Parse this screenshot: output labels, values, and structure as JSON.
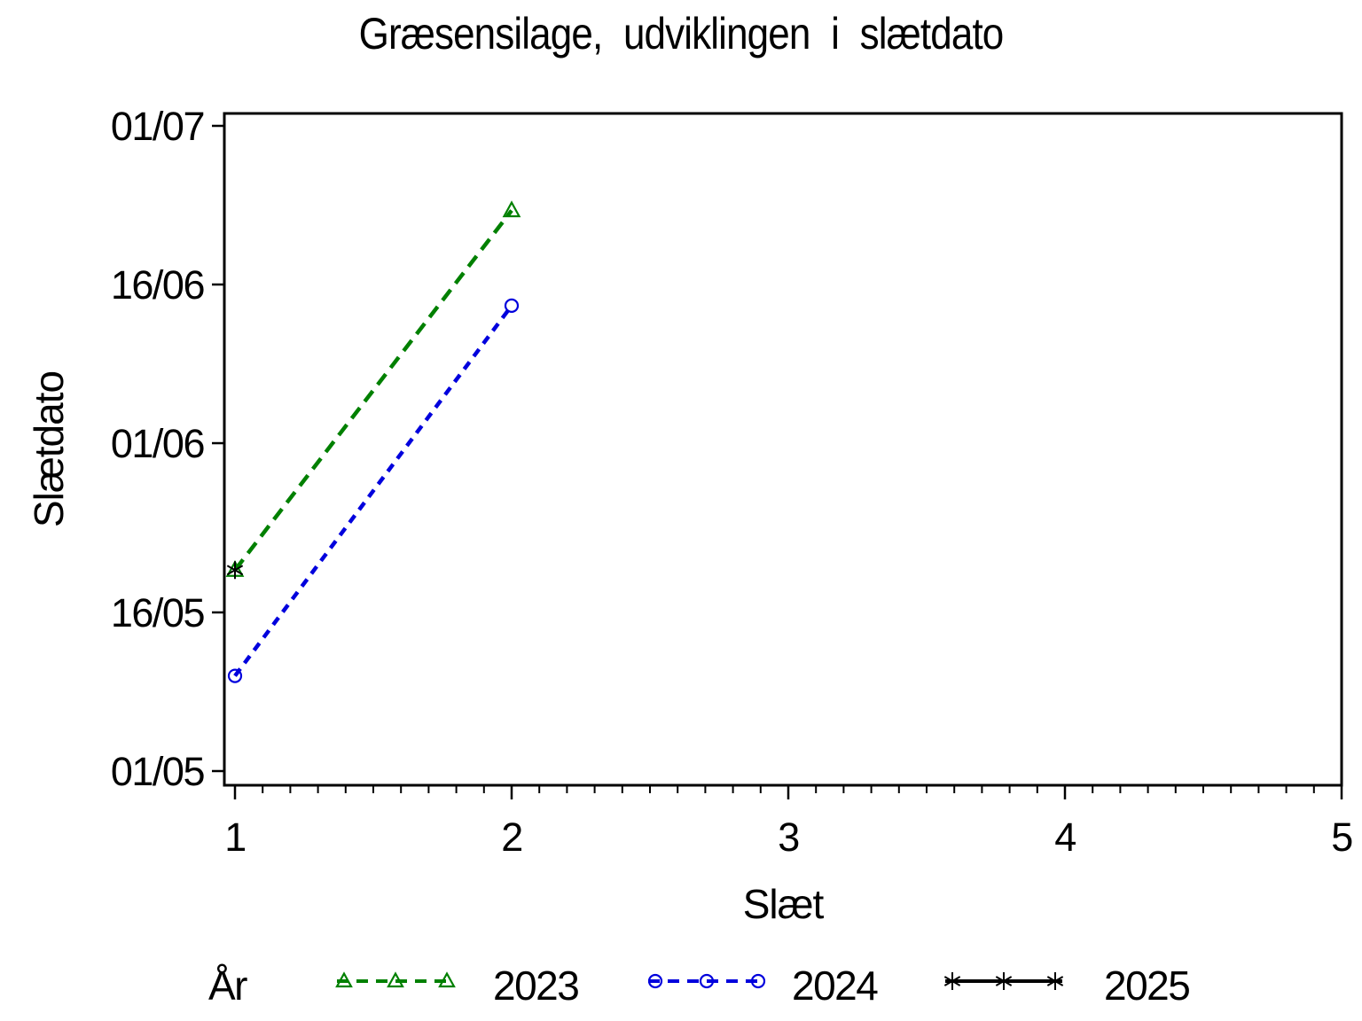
{
  "chart_data": {
    "type": "line",
    "title": "Græsensilage, udviklingen i slætdato",
    "xlabel": "Slæt",
    "ylabel": "Slætdato",
    "xlim": [
      1,
      5
    ],
    "x_ticks": [
      1,
      2,
      3,
      4,
      5
    ],
    "x_minor_tick_step": 0.1,
    "y_ticks": [
      "01/05",
      "16/05",
      "01/06",
      "16/06",
      "01/07"
    ],
    "ylim_dates": [
      "01/05",
      "01/07"
    ],
    "grid": false,
    "legend_title": "År",
    "legend_position": "bottom",
    "series": [
      {
        "name": "2023",
        "color": "#008000",
        "line_style": "dashed",
        "marker": "triangle",
        "points": [
          {
            "x": 1,
            "date": "20/05"
          },
          {
            "x": 2,
            "date": "23/06"
          }
        ]
      },
      {
        "name": "2024",
        "color": "#0000dd",
        "line_style": "dashed-short",
        "marker": "circle",
        "points": [
          {
            "x": 1,
            "date": "10/05"
          },
          {
            "x": 2,
            "date": "14/06"
          }
        ]
      },
      {
        "name": "2025",
        "color": "#000000",
        "line_style": "solid",
        "marker": "star",
        "points": [
          {
            "x": 1,
            "date": "20/05"
          }
        ]
      }
    ]
  }
}
